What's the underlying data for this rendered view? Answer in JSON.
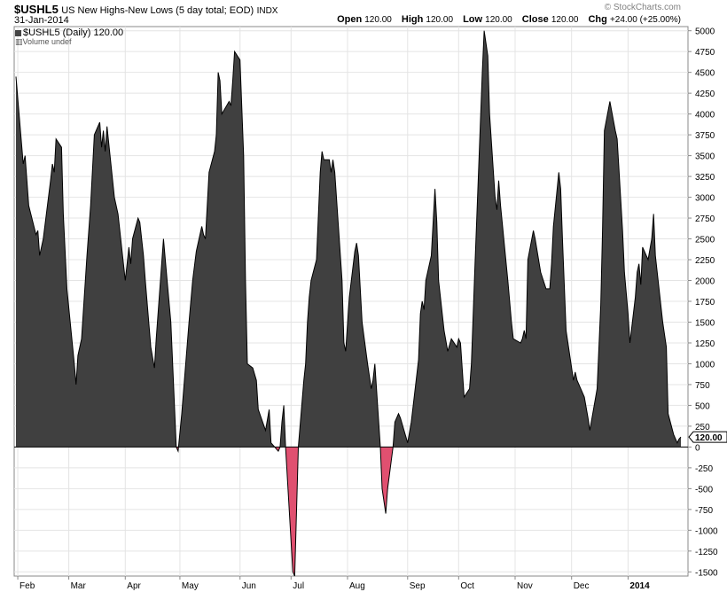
{
  "header": {
    "symbol": "$USHL5",
    "name": "US New Highs-New Lows (5 day total; EOD)",
    "exchange": "INDX",
    "date": "31-Jan-2014",
    "logo_text": "© StockCharts.com"
  },
  "quote": {
    "open_label": "Open",
    "open": "120.00",
    "high_label": "High",
    "high": "120.00",
    "low_label": "Low",
    "low": "120.00",
    "close_label": "Close",
    "close": "120.00",
    "chg_label": "Chg",
    "chg": "+24.00 (+25.00%)"
  },
  "legend": {
    "series_label": "$USHL5 (Daily) 120.00",
    "volume_label": "Volume undef"
  },
  "chart_data": {
    "type": "area",
    "title": "US New Highs-New Lows (5 day total; EOD)",
    "xlabel": "",
    "ylabel": "",
    "ylim": [
      -1550,
      5050
    ],
    "yticks": [
      -1500,
      -1250,
      -1000,
      -750,
      -500,
      -250,
      0,
      250,
      500,
      750,
      1000,
      1250,
      1500,
      1750,
      2000,
      2250,
      2500,
      2750,
      3000,
      3250,
      3500,
      3750,
      4000,
      4250,
      4500,
      4750,
      5000
    ],
    "grid": true,
    "last_value_label": "120.00",
    "positive_color": "#404040",
    "negative_color": "#e05070",
    "x_start": "2013-01-31",
    "x_end": "2014-01-31",
    "months": [
      {
        "label": "Feb",
        "date": "2013-02-01",
        "bold": false
      },
      {
        "label": "Mar",
        "date": "2013-03-01",
        "bold": false
      },
      {
        "label": "Apr",
        "date": "2013-04-01",
        "bold": false
      },
      {
        "label": "May",
        "date": "2013-05-01",
        "bold": false
      },
      {
        "label": "Jun",
        "date": "2013-06-03",
        "bold": false
      },
      {
        "label": "Jul",
        "date": "2013-07-01",
        "bold": false
      },
      {
        "label": "Aug",
        "date": "2013-08-01",
        "bold": false
      },
      {
        "label": "Sep",
        "date": "2013-09-03",
        "bold": false
      },
      {
        "label": "Oct",
        "date": "2013-10-01",
        "bold": false
      },
      {
        "label": "Nov",
        "date": "2013-11-01",
        "bold": false
      },
      {
        "label": "Dec",
        "date": "2013-12-02",
        "bold": false
      },
      {
        "label": "2014",
        "date": "2014-01-02",
        "bold": true
      }
    ],
    "series": [
      {
        "values": [
          [
            "2013-01-31",
            4450
          ],
          [
            "2013-02-04",
            3400
          ],
          [
            "2013-02-05",
            3500
          ],
          [
            "2013-02-07",
            2900
          ],
          [
            "2013-02-11",
            2550
          ],
          [
            "2013-02-12",
            2600
          ],
          [
            "2013-02-13",
            2300
          ],
          [
            "2013-02-15",
            2500
          ],
          [
            "2013-02-19",
            3200
          ],
          [
            "2013-02-20",
            3400
          ],
          [
            "2013-02-21",
            3300
          ],
          [
            "2013-02-22",
            3700
          ],
          [
            "2013-02-25",
            3600
          ],
          [
            "2013-02-26",
            2800
          ],
          [
            "2013-02-28",
            1900
          ],
          [
            "2013-03-04",
            1000
          ],
          [
            "2013-03-05",
            750
          ],
          [
            "2013-03-06",
            1100
          ],
          [
            "2013-03-08",
            1300
          ],
          [
            "2013-03-11",
            2300
          ],
          [
            "2013-03-13",
            2900
          ],
          [
            "2013-03-15",
            3750
          ],
          [
            "2013-03-18",
            3900
          ],
          [
            "2013-03-19",
            3600
          ],
          [
            "2013-03-20",
            3800
          ],
          [
            "2013-03-21",
            3550
          ],
          [
            "2013-03-22",
            3850
          ],
          [
            "2013-03-26",
            3000
          ],
          [
            "2013-03-28",
            2800
          ],
          [
            "2013-04-01",
            2000
          ],
          [
            "2013-04-03",
            2400
          ],
          [
            "2013-04-04",
            2200
          ],
          [
            "2013-04-05",
            2500
          ],
          [
            "2013-04-08",
            2750
          ],
          [
            "2013-04-09",
            2700
          ],
          [
            "2013-04-11",
            2300
          ],
          [
            "2013-04-12",
            2000
          ],
          [
            "2013-04-15",
            1200
          ],
          [
            "2013-04-17",
            950
          ],
          [
            "2013-04-18",
            1300
          ],
          [
            "2013-04-22",
            2500
          ],
          [
            "2013-04-24",
            2000
          ],
          [
            "2013-04-26",
            1500
          ],
          [
            "2013-04-29",
            0
          ],
          [
            "2013-04-30",
            -50
          ],
          [
            "2013-05-02",
            400
          ],
          [
            "2013-05-06",
            1500
          ],
          [
            "2013-05-08",
            2000
          ],
          [
            "2013-05-10",
            2350
          ],
          [
            "2013-05-13",
            2650
          ],
          [
            "2013-05-14",
            2550
          ],
          [
            "2013-05-15",
            2500
          ],
          [
            "2013-05-17",
            3300
          ],
          [
            "2013-05-20",
            3550
          ],
          [
            "2013-05-21",
            3750
          ],
          [
            "2013-05-22",
            4500
          ],
          [
            "2013-05-23",
            4400
          ],
          [
            "2013-05-24",
            4000
          ],
          [
            "2013-05-28",
            4150
          ],
          [
            "2013-05-29",
            4100
          ],
          [
            "2013-05-30",
            4400
          ],
          [
            "2013-05-31",
            4750
          ],
          [
            "2013-06-03",
            4650
          ],
          [
            "2013-06-05",
            3500
          ],
          [
            "2013-06-06",
            2000
          ],
          [
            "2013-06-07",
            1000
          ],
          [
            "2013-06-10",
            950
          ],
          [
            "2013-06-12",
            800
          ],
          [
            "2013-06-13",
            450
          ],
          [
            "2013-06-17",
            200
          ],
          [
            "2013-06-19",
            450
          ],
          [
            "2013-06-20",
            50
          ],
          [
            "2013-06-24",
            -50
          ],
          [
            "2013-06-25",
            0
          ],
          [
            "2013-06-26",
            300
          ],
          [
            "2013-06-27",
            500
          ],
          [
            "2013-06-28",
            0
          ],
          [
            "2013-07-02",
            -1500
          ],
          [
            "2013-07-03",
            -1550
          ],
          [
            "2013-07-05",
            0
          ],
          [
            "2013-07-08",
            800
          ],
          [
            "2013-07-09",
            1000
          ],
          [
            "2013-07-10",
            1500
          ],
          [
            "2013-07-11",
            1800
          ],
          [
            "2013-07-12",
            2000
          ],
          [
            "2013-07-15",
            2250
          ],
          [
            "2013-07-17",
            3300
          ],
          [
            "2013-07-18",
            3550
          ],
          [
            "2013-07-19",
            3450
          ],
          [
            "2013-07-22",
            3450
          ],
          [
            "2013-07-23",
            3300
          ],
          [
            "2013-07-24",
            3450
          ],
          [
            "2013-07-25",
            3300
          ],
          [
            "2013-07-29",
            2000
          ],
          [
            "2013-07-30",
            1250
          ],
          [
            "2013-07-31",
            1150
          ],
          [
            "2013-08-02",
            1800
          ],
          [
            "2013-08-05",
            2350
          ],
          [
            "2013-08-06",
            2450
          ],
          [
            "2013-08-07",
            2300
          ],
          [
            "2013-08-09",
            1500
          ],
          [
            "2013-08-12",
            1000
          ],
          [
            "2013-08-14",
            700
          ],
          [
            "2013-08-15",
            800
          ],
          [
            "2013-08-16",
            1000
          ],
          [
            "2013-08-19",
            0
          ],
          [
            "2013-08-20",
            -500
          ],
          [
            "2013-08-22",
            -800
          ],
          [
            "2013-08-23",
            -500
          ],
          [
            "2013-08-26",
            0
          ],
          [
            "2013-08-27",
            300
          ],
          [
            "2013-08-29",
            400
          ],
          [
            "2013-08-30",
            350
          ],
          [
            "2013-09-03",
            50
          ],
          [
            "2013-09-05",
            300
          ],
          [
            "2013-09-09",
            1050
          ],
          [
            "2013-09-10",
            1600
          ],
          [
            "2013-09-11",
            1750
          ],
          [
            "2013-09-12",
            1650
          ],
          [
            "2013-09-13",
            2000
          ],
          [
            "2013-09-16",
            2300
          ],
          [
            "2013-09-18",
            3100
          ],
          [
            "2013-09-19",
            2700
          ],
          [
            "2013-09-20",
            2000
          ],
          [
            "2013-09-23",
            1400
          ],
          [
            "2013-09-25",
            1150
          ],
          [
            "2013-09-27",
            1300
          ],
          [
            "2013-09-30",
            1200
          ],
          [
            "2013-10-01",
            1300
          ],
          [
            "2013-10-02",
            1250
          ],
          [
            "2013-10-04",
            600
          ],
          [
            "2013-10-07",
            700
          ],
          [
            "2013-10-08",
            1000
          ],
          [
            "2013-10-10",
            2200
          ],
          [
            "2013-10-14",
            4500
          ],
          [
            "2013-10-15",
            5000
          ],
          [
            "2013-10-17",
            4700
          ],
          [
            "2013-10-18",
            4000
          ],
          [
            "2013-10-21",
            3000
          ],
          [
            "2013-10-22",
            2850
          ],
          [
            "2013-10-23",
            3200
          ],
          [
            "2013-10-24",
            2900
          ],
          [
            "2013-10-28",
            2000
          ],
          [
            "2013-10-30",
            1500
          ],
          [
            "2013-10-31",
            1300
          ],
          [
            "2013-11-04",
            1250
          ],
          [
            "2013-11-05",
            1300
          ],
          [
            "2013-11-06",
            1400
          ],
          [
            "2013-11-07",
            1300
          ],
          [
            "2013-11-08",
            2250
          ],
          [
            "2013-11-11",
            2600
          ],
          [
            "2013-11-12",
            2500
          ],
          [
            "2013-11-15",
            2100
          ],
          [
            "2013-11-18",
            1900
          ],
          [
            "2013-11-20",
            1900
          ],
          [
            "2013-11-21",
            2200
          ],
          [
            "2013-11-22",
            2650
          ],
          [
            "2013-11-25",
            3300
          ],
          [
            "2013-11-26",
            3100
          ],
          [
            "2013-11-27",
            2500
          ],
          [
            "2013-11-29",
            1400
          ],
          [
            "2013-12-03",
            800
          ],
          [
            "2013-12-04",
            900
          ],
          [
            "2013-12-05",
            800
          ],
          [
            "2013-12-09",
            600
          ],
          [
            "2013-12-11",
            350
          ],
          [
            "2013-12-12",
            200
          ],
          [
            "2013-12-16",
            700
          ],
          [
            "2013-12-18",
            1700
          ],
          [
            "2013-12-19",
            2600
          ],
          [
            "2013-12-20",
            3800
          ],
          [
            "2013-12-23",
            4150
          ],
          [
            "2013-12-26",
            3800
          ],
          [
            "2013-12-27",
            3700
          ],
          [
            "2013-12-30",
            2600
          ],
          [
            "2013-12-31",
            2100
          ],
          [
            "2014-01-02",
            1600
          ],
          [
            "2014-01-03",
            1250
          ],
          [
            "2014-01-06",
            1800
          ],
          [
            "2014-01-07",
            2100
          ],
          [
            "2014-01-08",
            2200
          ],
          [
            "2014-01-09",
            1950
          ],
          [
            "2014-01-10",
            2400
          ],
          [
            "2014-01-13",
            2250
          ],
          [
            "2014-01-15",
            2500
          ],
          [
            "2014-01-16",
            2800
          ],
          [
            "2014-01-17",
            2300
          ],
          [
            "2014-01-21",
            1500
          ],
          [
            "2014-01-23",
            1200
          ],
          [
            "2014-01-24",
            400
          ],
          [
            "2014-01-27",
            150
          ],
          [
            "2014-01-28",
            100
          ],
          [
            "2014-01-29",
            50
          ],
          [
            "2014-01-30",
            96
          ],
          [
            "2014-01-31",
            120
          ]
        ]
      }
    ]
  }
}
